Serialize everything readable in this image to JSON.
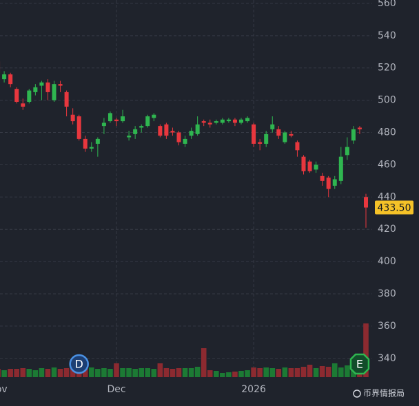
{
  "chart_data": {
    "type": "candlestick",
    "categories": [
      "Nov",
      null,
      null,
      null,
      null,
      null,
      null,
      null,
      null,
      null,
      null,
      null,
      null,
      null,
      null,
      null,
      null,
      null,
      null,
      "Dec",
      null,
      null,
      null,
      null,
      null,
      null,
      null,
      null,
      null,
      null,
      null,
      null,
      null,
      null,
      null,
      null,
      null,
      null,
      null,
      null,
      null,
      "2026",
      null,
      null,
      null,
      null,
      null,
      null,
      null,
      null,
      null,
      null,
      null,
      null,
      null,
      null,
      null,
      null,
      null,
      null
    ],
    "open": [
      524,
      513,
      516,
      507,
      498,
      499,
      505,
      509,
      511,
      500,
      510,
      505,
      491,
      490,
      476,
      470,
      473,
      484,
      487,
      488,
      487,
      477,
      479,
      483,
      484,
      489,
      484,
      485,
      481,
      480,
      473,
      478,
      479,
      487,
      486,
      486,
      486,
      487,
      488,
      486,
      487,
      485,
      474,
      473,
      482,
      482,
      474,
      479,
      474,
      465,
      462,
      457,
      453,
      452,
      447,
      450,
      466,
      475,
      483,
      440
    ],
    "high": [
      528,
      518,
      517,
      508,
      501,
      507,
      510,
      512,
      513,
      512,
      512,
      506,
      495,
      491,
      478,
      474,
      477,
      489,
      493,
      489,
      494,
      481,
      484,
      485,
      491,
      492,
      485,
      486,
      483,
      481,
      478,
      483,
      490,
      488,
      488,
      488,
      489,
      489,
      489,
      489,
      490,
      486,
      476,
      481,
      490,
      484,
      481,
      481,
      475,
      466,
      463,
      462,
      455,
      453,
      453,
      471,
      477,
      484,
      484,
      442
    ],
    "low": [
      515,
      511,
      508,
      498,
      494,
      498,
      503,
      500,
      500,
      499,
      505,
      490,
      485,
      475,
      468,
      468,
      465,
      479,
      486,
      484,
      486,
      475,
      476,
      480,
      483,
      487,
      477,
      476,
      478,
      472,
      471,
      476,
      478,
      484,
      483,
      485,
      485,
      486,
      484,
      485,
      486,
      471,
      469,
      471,
      480,
      476,
      473,
      477,
      465,
      454,
      455,
      455,
      447,
      440,
      445,
      448,
      463,
      473,
      479,
      421
    ],
    "close": [
      517,
      516,
      510,
      499,
      496,
      506,
      508,
      511,
      505,
      510,
      509,
      496,
      487,
      476,
      470,
      471,
      476,
      486,
      492,
      487,
      490,
      478,
      482,
      484,
      490,
      491,
      478,
      478,
      480,
      474,
      476,
      481,
      485,
      486,
      485,
      487,
      488,
      488,
      486,
      488,
      489,
      473,
      473,
      479,
      485,
      478,
      480,
      478,
      469,
      456,
      456,
      460,
      450,
      445,
      451,
      465,
      471,
      482,
      482,
      433.5
    ],
    "volume": [
      12,
      10,
      12,
      12,
      13,
      12,
      10,
      13,
      12,
      14,
      12,
      13,
      12,
      13,
      13,
      14,
      12,
      13,
      12,
      20,
      13,
      13,
      12,
      13,
      13,
      12,
      20,
      13,
      12,
      13,
      13,
      13,
      15,
      42,
      10,
      9,
      6,
      7,
      8,
      9,
      10,
      14,
      13,
      14,
      13,
      12,
      14,
      13,
      13,
      15,
      18,
      13,
      16,
      15,
      20,
      14,
      17,
      20,
      15,
      78
    ],
    "up_color": "#2fb650",
    "down_color": "#e8373e",
    "volume_up_color": "#1c7a34",
    "volume_down_color": "#8c2a30",
    "ylim": [
      328.4,
      562.1
    ],
    "yticks": [
      340,
      360,
      380,
      400,
      420,
      440,
      460,
      480,
      500,
      520,
      540,
      560
    ],
    "grid": true,
    "last_price": {
      "value": 433.5,
      "label": "433.50"
    },
    "markers": [
      {
        "index": 13,
        "label": "D"
      },
      {
        "index": 58,
        "label": "E"
      }
    ],
    "watermark": "币界情报局"
  }
}
